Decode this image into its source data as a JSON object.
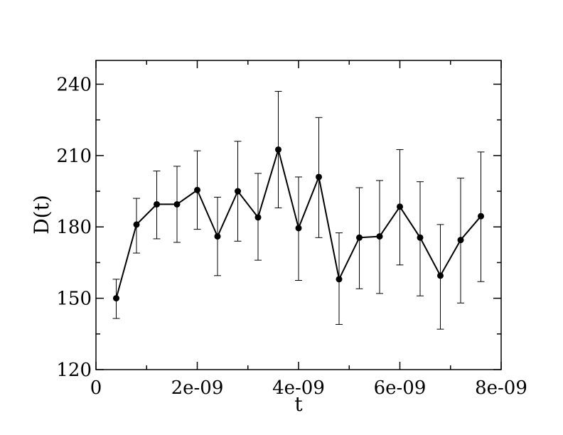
{
  "chart_data": {
    "type": "line",
    "title": "",
    "xlabel": "t",
    "ylabel": "D(t)",
    "xlim": [
      0,
      8e-09
    ],
    "ylim": [
      120,
      250
    ],
    "x_ticks": [
      {
        "value": 0,
        "label": "0"
      },
      {
        "value": 2e-09,
        "label": "2e-09"
      },
      {
        "value": 4e-09,
        "label": "4e-09"
      },
      {
        "value": 6e-09,
        "label": "6e-09"
      },
      {
        "value": 8e-09,
        "label": "8e-09"
      }
    ],
    "y_ticks": [
      {
        "value": 120,
        "label": "120"
      },
      {
        "value": 150,
        "label": "150"
      },
      {
        "value": 180,
        "label": "180"
      },
      {
        "value": 210,
        "label": "210"
      },
      {
        "value": 240,
        "label": "240"
      }
    ],
    "grid": false,
    "series": [
      {
        "color": "#000000",
        "marker": "circle",
        "points": [
          {
            "x": 4e-10,
            "y": 150,
            "err_low": 141.5,
            "err_high": 158
          },
          {
            "x": 8e-10,
            "y": 181,
            "err_low": 169,
            "err_high": 192
          },
          {
            "x": 1.2e-09,
            "y": 189.5,
            "err_low": 175,
            "err_high": 203.5
          },
          {
            "x": 1.6e-09,
            "y": 189.5,
            "err_low": 173.5,
            "err_high": 205.5
          },
          {
            "x": 2e-09,
            "y": 195.5,
            "err_low": 179,
            "err_high": 212
          },
          {
            "x": 2.4e-09,
            "y": 176,
            "err_low": 159.5,
            "err_high": 192.5
          },
          {
            "x": 2.8e-09,
            "y": 195,
            "err_low": 174,
            "err_high": 216
          },
          {
            "x": 3.2e-09,
            "y": 184,
            "err_low": 166,
            "err_high": 202.5
          },
          {
            "x": 3.6e-09,
            "y": 212.5,
            "err_low": 188,
            "err_high": 237
          },
          {
            "x": 4e-09,
            "y": 179.5,
            "err_low": 157.5,
            "err_high": 201
          },
          {
            "x": 4.4e-09,
            "y": 201,
            "err_low": 175.5,
            "err_high": 226
          },
          {
            "x": 4.8e-09,
            "y": 158,
            "err_low": 139,
            "err_high": 177.5
          },
          {
            "x": 5.2e-09,
            "y": 175.5,
            "err_low": 154,
            "err_high": 196.5
          },
          {
            "x": 5.6e-09,
            "y": 176,
            "err_low": 152,
            "err_high": 199.5
          },
          {
            "x": 6e-09,
            "y": 188.5,
            "err_low": 164,
            "err_high": 212.5
          },
          {
            "x": 6.4e-09,
            "y": 175.5,
            "err_low": 151,
            "err_high": 199
          },
          {
            "x": 6.8e-09,
            "y": 159.5,
            "err_low": 137,
            "err_high": 181
          },
          {
            "x": 7.2e-09,
            "y": 174.5,
            "err_low": 148,
            "err_high": 200.5
          },
          {
            "x": 7.6e-09,
            "y": 184.5,
            "err_low": 157,
            "err_high": 211.5
          }
        ]
      }
    ]
  }
}
